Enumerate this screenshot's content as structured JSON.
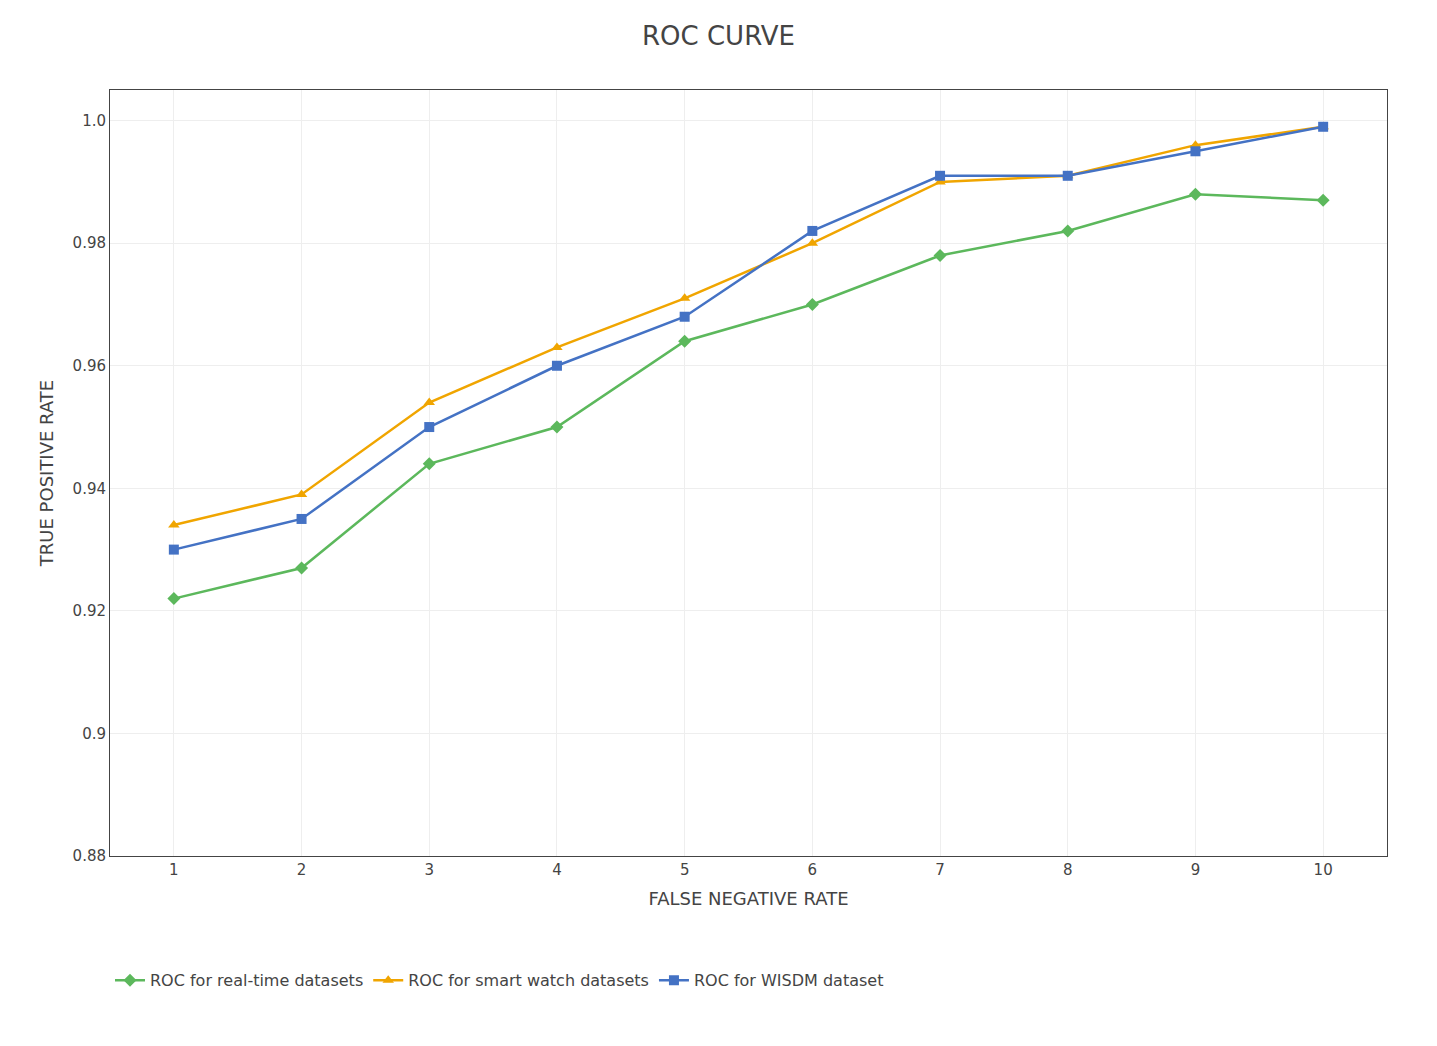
{
  "chart_data": {
    "type": "line",
    "title": "ROC CURVE",
    "xlabel": "FALSE NEGATIVE RATE",
    "ylabel": "TRUE POSITIVE RATE",
    "x": [
      1,
      2,
      3,
      4,
      5,
      6,
      7,
      8,
      9,
      10
    ],
    "series": [
      {
        "name": "ROC for real-time datasets",
        "color": "#5cb85c",
        "marker": "diamond",
        "values": [
          0.922,
          0.927,
          0.944,
          0.95,
          0.964,
          0.97,
          0.978,
          0.982,
          0.988,
          0.987
        ]
      },
      {
        "name": "ROC for smart watch datasets",
        "color": "#f0a500",
        "marker": "triangle-up",
        "values": [
          0.934,
          0.939,
          0.954,
          0.963,
          0.971,
          0.98,
          0.99,
          0.991,
          0.996,
          0.999
        ]
      },
      {
        "name": "ROC for WISDM dataset",
        "color": "#4472c4",
        "marker": "square",
        "values": [
          0.93,
          0.935,
          0.95,
          0.96,
          0.968,
          0.982,
          0.991,
          0.991,
          0.995,
          0.999
        ]
      }
    ],
    "xlim": [
      0.5,
      10.5
    ],
    "xticks": [
      1,
      2,
      3,
      4,
      5,
      6,
      7,
      8,
      9,
      10
    ],
    "ylim": [
      0.88,
      1.005
    ],
    "yticks": [
      0.88,
      0.9,
      0.92,
      0.94,
      0.96,
      0.98,
      {
        "value": 1.0,
        "label": "1.0"
      }
    ],
    "grid": true,
    "legend": "lower left"
  }
}
